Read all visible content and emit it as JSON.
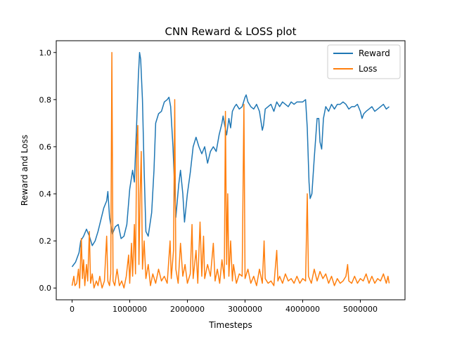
{
  "chart_data": {
    "type": "line",
    "title": "CNN Reward & LOSS plot",
    "xlabel": "Timesteps",
    "ylabel": "Reward and Loss",
    "xlim": [
      -275000,
      5775000
    ],
    "ylim": [
      -0.05,
      1.05
    ],
    "x_ticks": [
      0,
      1000000,
      2000000,
      3000000,
      4000000,
      5000000
    ],
    "y_ticks": [
      0.0,
      0.2,
      0.4,
      0.6,
      0.8,
      1.0
    ],
    "x_tick_labels": [
      "0",
      "1000000",
      "2000000",
      "3000000",
      "4000000",
      "5000000"
    ],
    "y_tick_labels": [
      "0.0",
      "0.2",
      "0.4",
      "0.6",
      "0.8",
      "1.0"
    ],
    "grid": false,
    "legend_position": "top-right",
    "series": [
      {
        "name": "Reward",
        "color": "#1f77b4",
        "points": [
          [
            0,
            0.09
          ],
          [
            60000,
            0.11
          ],
          [
            120000,
            0.15
          ],
          [
            150000,
            0.2
          ],
          [
            200000,
            0.22
          ],
          [
            250000,
            0.25
          ],
          [
            300000,
            0.22
          ],
          [
            350000,
            0.18
          ],
          [
            400000,
            0.2
          ],
          [
            450000,
            0.24
          ],
          [
            500000,
            0.29
          ],
          [
            550000,
            0.34
          ],
          [
            600000,
            0.37
          ],
          [
            620000,
            0.41
          ],
          [
            650000,
            0.3
          ],
          [
            700000,
            0.23
          ],
          [
            750000,
            0.26
          ],
          [
            800000,
            0.27
          ],
          [
            850000,
            0.21
          ],
          [
            900000,
            0.22
          ],
          [
            950000,
            0.27
          ],
          [
            1000000,
            0.42
          ],
          [
            1050000,
            0.5
          ],
          [
            1080000,
            0.45
          ],
          [
            1120000,
            0.7
          ],
          [
            1150000,
            0.9
          ],
          [
            1170000,
            1.0
          ],
          [
            1190000,
            0.97
          ],
          [
            1220000,
            0.8
          ],
          [
            1250000,
            0.5
          ],
          [
            1280000,
            0.24
          ],
          [
            1320000,
            0.22
          ],
          [
            1380000,
            0.32
          ],
          [
            1420000,
            0.5
          ],
          [
            1450000,
            0.7
          ],
          [
            1500000,
            0.74
          ],
          [
            1550000,
            0.75
          ],
          [
            1600000,
            0.79
          ],
          [
            1650000,
            0.8
          ],
          [
            1680000,
            0.81
          ],
          [
            1710000,
            0.77
          ],
          [
            1750000,
            0.6
          ],
          [
            1800000,
            0.3
          ],
          [
            1850000,
            0.44
          ],
          [
            1880000,
            0.5
          ],
          [
            1920000,
            0.4
          ],
          [
            1950000,
            0.28
          ],
          [
            2000000,
            0.4
          ],
          [
            2050000,
            0.49
          ],
          [
            2100000,
            0.6
          ],
          [
            2150000,
            0.64
          ],
          [
            2200000,
            0.6
          ],
          [
            2250000,
            0.57
          ],
          [
            2300000,
            0.6
          ],
          [
            2350000,
            0.53
          ],
          [
            2400000,
            0.58
          ],
          [
            2450000,
            0.6
          ],
          [
            2500000,
            0.58
          ],
          [
            2550000,
            0.65
          ],
          [
            2600000,
            0.7
          ],
          [
            2620000,
            0.73
          ],
          [
            2640000,
            0.7
          ],
          [
            2680000,
            0.65
          ],
          [
            2720000,
            0.72
          ],
          [
            2750000,
            0.68
          ],
          [
            2780000,
            0.75
          ],
          [
            2820000,
            0.77
          ],
          [
            2850000,
            0.78
          ],
          [
            2900000,
            0.76
          ],
          [
            2950000,
            0.77
          ],
          [
            3000000,
            0.81
          ],
          [
            3020000,
            0.82
          ],
          [
            3050000,
            0.79
          ],
          [
            3100000,
            0.77
          ],
          [
            3150000,
            0.76
          ],
          [
            3200000,
            0.78
          ],
          [
            3250000,
            0.75
          ],
          [
            3300000,
            0.67
          ],
          [
            3320000,
            0.69
          ],
          [
            3350000,
            0.76
          ],
          [
            3400000,
            0.77
          ],
          [
            3450000,
            0.78
          ],
          [
            3500000,
            0.75
          ],
          [
            3550000,
            0.79
          ],
          [
            3600000,
            0.77
          ],
          [
            3650000,
            0.79
          ],
          [
            3700000,
            0.78
          ],
          [
            3750000,
            0.77
          ],
          [
            3800000,
            0.79
          ],
          [
            3850000,
            0.78
          ],
          [
            3900000,
            0.79
          ],
          [
            3950000,
            0.79
          ],
          [
            4000000,
            0.79
          ],
          [
            4050000,
            0.8
          ],
          [
            4080000,
            0.68
          ],
          [
            4110000,
            0.45
          ],
          [
            4130000,
            0.38
          ],
          [
            4160000,
            0.4
          ],
          [
            4200000,
            0.55
          ],
          [
            4230000,
            0.65
          ],
          [
            4250000,
            0.72
          ],
          [
            4280000,
            0.72
          ],
          [
            4300000,
            0.62
          ],
          [
            4330000,
            0.59
          ],
          [
            4360000,
            0.72
          ],
          [
            4400000,
            0.77
          ],
          [
            4450000,
            0.75
          ],
          [
            4500000,
            0.78
          ],
          [
            4550000,
            0.76
          ],
          [
            4600000,
            0.78
          ],
          [
            4650000,
            0.78
          ],
          [
            4700000,
            0.79
          ],
          [
            4750000,
            0.78
          ],
          [
            4800000,
            0.76
          ],
          [
            4850000,
            0.77
          ],
          [
            4900000,
            0.77
          ],
          [
            4950000,
            0.78
          ],
          [
            5000000,
            0.75
          ],
          [
            5030000,
            0.72
          ],
          [
            5060000,
            0.74
          ],
          [
            5100000,
            0.75
          ],
          [
            5150000,
            0.76
          ],
          [
            5200000,
            0.77
          ],
          [
            5250000,
            0.75
          ],
          [
            5300000,
            0.76
          ],
          [
            5350000,
            0.77
          ],
          [
            5400000,
            0.78
          ],
          [
            5450000,
            0.76
          ],
          [
            5500000,
            0.77
          ]
        ]
      },
      {
        "name": "Loss",
        "color": "#ff7f0e",
        "points": [
          [
            0,
            0.01
          ],
          [
            30000,
            0.05
          ],
          [
            50000,
            0.01
          ],
          [
            80000,
            0.02
          ],
          [
            110000,
            0.08
          ],
          [
            130000,
            0.0
          ],
          [
            160000,
            0.21
          ],
          [
            180000,
            0.04
          ],
          [
            200000,
            0.12
          ],
          [
            220000,
            0.01
          ],
          [
            250000,
            0.1
          ],
          [
            270000,
            0.03
          ],
          [
            300000,
            0.24
          ],
          [
            320000,
            0.02
          ],
          [
            350000,
            0.06
          ],
          [
            380000,
            0.0
          ],
          [
            420000,
            0.03
          ],
          [
            450000,
            0.01
          ],
          [
            480000,
            0.05
          ],
          [
            520000,
            0.0
          ],
          [
            560000,
            0.03
          ],
          [
            600000,
            0.22
          ],
          [
            620000,
            0.03
          ],
          [
            650000,
            0.01
          ],
          [
            670000,
            0.06
          ],
          [
            690000,
            1.0
          ],
          [
            710000,
            0.03
          ],
          [
            740000,
            0.01
          ],
          [
            780000,
            0.08
          ],
          [
            820000,
            0.01
          ],
          [
            860000,
            0.03
          ],
          [
            900000,
            0.0
          ],
          [
            940000,
            0.05
          ],
          [
            980000,
            0.14
          ],
          [
            1000000,
            0.02
          ],
          [
            1030000,
            0.19
          ],
          [
            1050000,
            0.05
          ],
          [
            1080000,
            0.27
          ],
          [
            1100000,
            0.06
          ],
          [
            1120000,
            0.6
          ],
          [
            1140000,
            0.69
          ],
          [
            1160000,
            0.1
          ],
          [
            1180000,
            0.4
          ],
          [
            1200000,
            0.58
          ],
          [
            1220000,
            0.08
          ],
          [
            1250000,
            0.2
          ],
          [
            1280000,
            0.04
          ],
          [
            1320000,
            0.1
          ],
          [
            1360000,
            0.01
          ],
          [
            1400000,
            0.06
          ],
          [
            1450000,
            0.02
          ],
          [
            1500000,
            0.08
          ],
          [
            1550000,
            0.03
          ],
          [
            1600000,
            0.05
          ],
          [
            1650000,
            0.02
          ],
          [
            1700000,
            0.2
          ],
          [
            1720000,
            0.04
          ],
          [
            1760000,
            0.16
          ],
          [
            1780000,
            0.8
          ],
          [
            1800000,
            0.08
          ],
          [
            1840000,
            0.02
          ],
          [
            1880000,
            0.19
          ],
          [
            1920000,
            0.05
          ],
          [
            1960000,
            0.1
          ],
          [
            2000000,
            0.02
          ],
          [
            2050000,
            0.06
          ],
          [
            2080000,
            0.27
          ],
          [
            2100000,
            0.04
          ],
          [
            2150000,
            0.16
          ],
          [
            2180000,
            0.02
          ],
          [
            2220000,
            0.28
          ],
          [
            2250000,
            0.05
          ],
          [
            2280000,
            0.22
          ],
          [
            2300000,
            0.04
          ],
          [
            2350000,
            0.1
          ],
          [
            2400000,
            0.05
          ],
          [
            2450000,
            0.19
          ],
          [
            2480000,
            0.03
          ],
          [
            2520000,
            0.08
          ],
          [
            2560000,
            0.02
          ],
          [
            2600000,
            0.12
          ],
          [
            2640000,
            0.04
          ],
          [
            2660000,
            0.75
          ],
          [
            2680000,
            0.1
          ],
          [
            2700000,
            0.4
          ],
          [
            2720000,
            0.05
          ],
          [
            2750000,
            0.2
          ],
          [
            2780000,
            0.03
          ],
          [
            2800000,
            0.1
          ],
          [
            2850000,
            0.02
          ],
          [
            2900000,
            0.06
          ],
          [
            2950000,
            0.05
          ],
          [
            2980000,
            0.78
          ],
          [
            3000000,
            0.04
          ],
          [
            3050000,
            0.08
          ],
          [
            3100000,
            0.02
          ],
          [
            3150000,
            0.05
          ],
          [
            3200000,
            0.01
          ],
          [
            3250000,
            0.08
          ],
          [
            3300000,
            0.02
          ],
          [
            3330000,
            0.2
          ],
          [
            3350000,
            0.04
          ],
          [
            3400000,
            0.02
          ],
          [
            3450000,
            0.03
          ],
          [
            3500000,
            0.01
          ],
          [
            3550000,
            0.16
          ],
          [
            3570000,
            0.03
          ],
          [
            3600000,
            0.05
          ],
          [
            3650000,
            0.02
          ],
          [
            3700000,
            0.06
          ],
          [
            3750000,
            0.03
          ],
          [
            3800000,
            0.04
          ],
          [
            3850000,
            0.02
          ],
          [
            3900000,
            0.05
          ],
          [
            3950000,
            0.02
          ],
          [
            4000000,
            0.04
          ],
          [
            4050000,
            0.03
          ],
          [
            4080000,
            0.4
          ],
          [
            4100000,
            0.05
          ],
          [
            4150000,
            0.02
          ],
          [
            4200000,
            0.08
          ],
          [
            4250000,
            0.03
          ],
          [
            4300000,
            0.07
          ],
          [
            4350000,
            0.04
          ],
          [
            4400000,
            0.06
          ],
          [
            4450000,
            0.02
          ],
          [
            4500000,
            0.05
          ],
          [
            4550000,
            0.01
          ],
          [
            4600000,
            0.04
          ],
          [
            4650000,
            0.02
          ],
          [
            4700000,
            0.03
          ],
          [
            4750000,
            0.05
          ],
          [
            4780000,
            0.1
          ],
          [
            4800000,
            0.03
          ],
          [
            4850000,
            0.02
          ],
          [
            4900000,
            0.05
          ],
          [
            4950000,
            0.02
          ],
          [
            5000000,
            0.04
          ],
          [
            5050000,
            0.03
          ],
          [
            5100000,
            0.06
          ],
          [
            5150000,
            0.02
          ],
          [
            5200000,
            0.05
          ],
          [
            5250000,
            0.02
          ],
          [
            5300000,
            0.04
          ],
          [
            5350000,
            0.03
          ],
          [
            5400000,
            0.06
          ],
          [
            5450000,
            0.02
          ],
          [
            5480000,
            0.05
          ],
          [
            5500000,
            0.02
          ]
        ]
      }
    ]
  }
}
